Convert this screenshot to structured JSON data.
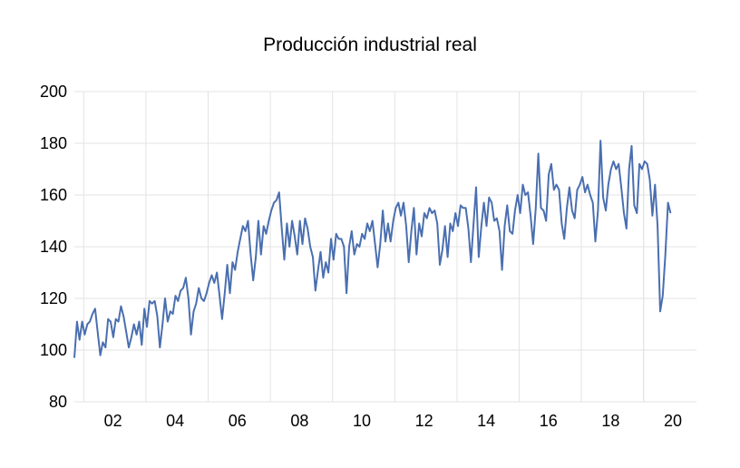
{
  "chart_data": {
    "type": "line",
    "title": "Producción industrial real",
    "xlabel": "",
    "ylabel": "",
    "ylim": [
      80,
      200
    ],
    "yticks": [
      80,
      100,
      120,
      140,
      160,
      180,
      200
    ],
    "xlim": [
      2000.7,
      2020.7
    ],
    "xtick_labels": [
      {
        "year": 2002,
        "label": "02"
      },
      {
        "year": 2004,
        "label": "04"
      },
      {
        "year": 2006,
        "label": "06"
      },
      {
        "year": 2008,
        "label": "08"
      },
      {
        "year": 2010,
        "label": "10"
      },
      {
        "year": 2012,
        "label": "12"
      },
      {
        "year": 2014,
        "label": "14"
      },
      {
        "year": 2016,
        "label": "16"
      },
      {
        "year": 2018,
        "label": "18"
      },
      {
        "year": 2020,
        "label": "20"
      }
    ],
    "grid": "vertical-and-horizontal",
    "legend": "none",
    "line_color": "#4a6fb0",
    "grid_color": "#e3e3e3",
    "start_year": 2000.7,
    "step_years": 0.0833333,
    "series": [
      {
        "values": [
          97,
          111,
          104,
          111,
          106,
          110,
          111,
          114,
          116,
          107,
          98,
          103,
          101,
          112,
          111,
          105,
          112,
          111,
          117,
          113,
          107,
          101,
          105,
          110,
          106,
          111,
          102,
          116,
          109,
          119,
          118,
          119,
          113,
          101,
          110,
          120,
          111,
          115,
          114,
          121,
          119,
          123,
          124,
          128,
          120,
          106,
          115,
          118,
          124,
          120,
          119,
          122,
          126,
          129,
          126,
          130,
          121,
          112,
          122,
          133,
          122,
          134,
          131,
          138,
          143,
          148,
          146,
          150,
          137,
          127,
          136,
          150,
          137,
          148,
          145,
          150,
          154,
          157,
          158,
          161,
          147,
          135,
          149,
          140,
          150,
          144,
          137,
          150,
          141,
          151,
          147,
          140,
          136,
          123,
          131,
          138,
          128,
          134,
          130,
          143,
          135,
          145,
          143,
          143,
          140,
          122,
          140,
          146,
          137,
          141,
          140,
          145,
          143,
          149,
          146,
          150,
          141,
          132,
          141,
          154,
          142,
          149,
          142,
          150,
          155,
          157,
          152,
          157,
          148,
          134,
          146,
          155,
          137,
          149,
          144,
          153,
          151,
          155,
          153,
          154,
          149,
          133,
          139,
          148,
          136,
          149,
          146,
          153,
          148,
          156,
          155,
          155,
          147,
          134,
          149,
          163,
          136,
          148,
          157,
          148,
          159,
          157,
          150,
          151,
          146,
          131,
          148,
          156,
          146,
          145,
          154,
          160,
          153,
          164,
          160,
          161,
          152,
          141,
          155,
          176,
          155,
          154,
          150,
          168,
          172,
          162,
          164,
          162,
          149,
          143,
          155,
          163,
          154,
          151,
          162,
          164,
          167,
          161,
          164,
          160,
          157,
          142,
          154,
          181,
          159,
          154,
          164,
          170,
          173,
          170,
          172,
          163,
          153,
          147,
          170,
          179,
          156,
          153,
          172,
          170,
          173,
          172,
          166,
          152,
          164,
          148,
          115,
          121,
          137,
          157,
          153
        ]
      }
    ]
  }
}
